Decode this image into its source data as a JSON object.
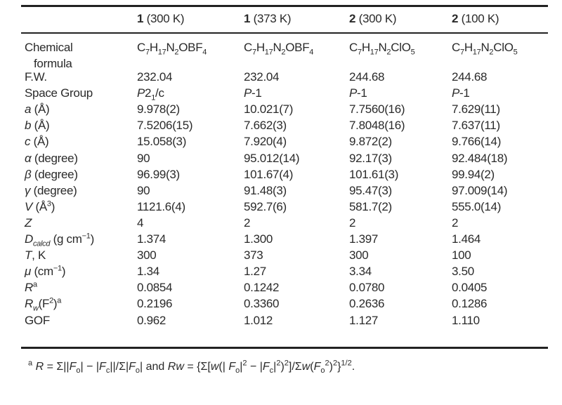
{
  "header": [
    [
      {
        "t": "1",
        "b": 1
      },
      {
        "t": " (300 K)"
      }
    ],
    [
      {
        "t": "1",
        "b": 1
      },
      {
        "t": " (373 K)"
      }
    ],
    [
      {
        "t": "2",
        "b": 1
      },
      {
        "t": " (300 K)"
      }
    ],
    [
      {
        "t": "2",
        "b": 1
      },
      {
        "t": " (100 K)"
      }
    ]
  ],
  "rows": [
    {
      "label": [
        {
          "t": "Chemical"
        }
      ],
      "label2": [
        {
          "t": "formula"
        }
      ],
      "values": [
        [
          {
            "t": "C"
          },
          {
            "t": "7",
            "sub": 1
          },
          {
            "t": "H"
          },
          {
            "t": "17",
            "sub": 1
          },
          {
            "t": "N"
          },
          {
            "t": "2",
            "sub": 1
          },
          {
            "t": "OBF"
          },
          {
            "t": "4",
            "sub": 1
          }
        ],
        [
          {
            "t": "C"
          },
          {
            "t": "7",
            "sub": 1
          },
          {
            "t": "H"
          },
          {
            "t": "17",
            "sub": 1
          },
          {
            "t": "N"
          },
          {
            "t": "2",
            "sub": 1
          },
          {
            "t": "OBF"
          },
          {
            "t": "4",
            "sub": 1
          }
        ],
        [
          {
            "t": "C"
          },
          {
            "t": "7",
            "sub": 1
          },
          {
            "t": "H"
          },
          {
            "t": "17",
            "sub": 1
          },
          {
            "t": "N"
          },
          {
            "t": "2",
            "sub": 1
          },
          {
            "t": "ClO"
          },
          {
            "t": "5",
            "sub": 1
          }
        ],
        [
          {
            "t": "C"
          },
          {
            "t": "7",
            "sub": 1
          },
          {
            "t": "H"
          },
          {
            "t": "17",
            "sub": 1
          },
          {
            "t": "N"
          },
          {
            "t": "2",
            "sub": 1
          },
          {
            "t": "ClO"
          },
          {
            "t": "5",
            "sub": 1
          }
        ]
      ]
    },
    {
      "label": [
        {
          "t": "F.W."
        }
      ],
      "values": [
        "232.04",
        "232.04",
        "244.68",
        "244.68"
      ]
    },
    {
      "label": [
        {
          "t": "Space Group"
        }
      ],
      "values": [
        [
          {
            "t": "P",
            "i": 1
          },
          {
            "t": "2"
          },
          {
            "t": "1",
            "sub": 1
          },
          {
            "t": "/c"
          }
        ],
        [
          {
            "t": "P",
            "i": 1
          },
          {
            "t": "-1"
          }
        ],
        [
          {
            "t": "P",
            "i": 1
          },
          {
            "t": "-1"
          }
        ],
        [
          {
            "t": "P",
            "i": 1
          },
          {
            "t": "-1"
          }
        ]
      ]
    },
    {
      "label": [
        {
          "t": "a",
          "i": 1
        },
        {
          "t": " (Å)"
        }
      ],
      "values": [
        "9.978(2)",
        "10.021(7)",
        "7.7560(16)",
        "7.629(11)"
      ]
    },
    {
      "label": [
        {
          "t": "b",
          "i": 1
        },
        {
          "t": " (Å)"
        }
      ],
      "values": [
        "7.5206(15)",
        "7.662(3)",
        "7.8048(16)",
        "7.637(11)"
      ]
    },
    {
      "label": [
        {
          "t": "c",
          "i": 1
        },
        {
          "t": " (Å)"
        }
      ],
      "values": [
        "15.058(3)",
        "7.920(4)",
        "9.872(2)",
        "9.766(14)"
      ]
    },
    {
      "label": [
        {
          "t": "α",
          "i": 1
        },
        {
          "t": " (degree)"
        }
      ],
      "values": [
        "90",
        "95.012(14)",
        "92.17(3)",
        "92.484(18)"
      ]
    },
    {
      "label": [
        {
          "t": "β",
          "i": 1
        },
        {
          "t": " (degree)"
        }
      ],
      "values": [
        "96.99(3)",
        "101.67(4)",
        "101.61(3)",
        "99.94(2)"
      ]
    },
    {
      "label": [
        {
          "t": "γ",
          "i": 1
        },
        {
          "t": " (degree)"
        }
      ],
      "values": [
        "90",
        "91.48(3)",
        "95.47(3)",
        "97.009(14)"
      ]
    },
    {
      "label": [
        {
          "t": "V",
          "i": 1
        },
        {
          "t": " (Å"
        },
        {
          "t": "3",
          "sup": 1
        },
        {
          "t": ")"
        }
      ],
      "values": [
        "1121.6(4)",
        "592.7(6)",
        "581.7(2)",
        "555.0(14)"
      ]
    },
    {
      "label": [
        {
          "t": "Z",
          "i": 1
        }
      ],
      "values": [
        "4",
        "2",
        "2",
        "2"
      ]
    },
    {
      "label": [
        {
          "t": "D",
          "i": 1
        },
        {
          "t": "calcd",
          "sub": 1,
          "i": 1
        },
        {
          "t": " (g cm"
        },
        {
          "t": "−1",
          "sup": 1
        },
        {
          "t": ")"
        }
      ],
      "values": [
        "1.374",
        "1.300",
        "1.397",
        "1.464"
      ]
    },
    {
      "label": [
        {
          "t": "T",
          "i": 1
        },
        {
          "t": ", K"
        }
      ],
      "values": [
        "300",
        "373",
        "300",
        "100"
      ]
    },
    {
      "label": [
        {
          "t": "μ",
          "i": 1
        },
        {
          "t": " (cm"
        },
        {
          "t": "−1",
          "sup": 1
        },
        {
          "t": ")"
        }
      ],
      "values": [
        "1.34",
        "1.27",
        "3.34",
        "3.50"
      ]
    },
    {
      "label": [
        {
          "t": "R",
          "i": 1
        },
        {
          "t": "a",
          "sup": 1
        }
      ],
      "values": [
        "0.0854",
        "0.1242",
        "0.0780",
        "0.0405"
      ]
    },
    {
      "label": [
        {
          "t": "R",
          "i": 1
        },
        {
          "t": "w",
          "sub": 1,
          "i": 1
        },
        {
          "t": "(F"
        },
        {
          "t": "2",
          "sup": 1
        },
        {
          "t": ")"
        },
        {
          "t": "a",
          "sup": 1
        }
      ],
      "values": [
        "0.2196",
        "0.3360",
        "0.2636",
        "0.1286"
      ]
    },
    {
      "label": [
        {
          "t": "GOF"
        }
      ],
      "values": [
        "0.962",
        "1.012",
        "1.127",
        "1.110"
      ]
    }
  ],
  "footnote": [
    {
      "t": "a",
      "sup": 1
    },
    {
      "t": "  "
    },
    {
      "t": "R",
      "i": 1
    },
    {
      "t": " = Σ||"
    },
    {
      "t": "F",
      "i": 1
    },
    {
      "t": "o",
      "sub": 1
    },
    {
      "t": "| − |"
    },
    {
      "t": "F",
      "i": 1
    },
    {
      "t": "c",
      "sub": 1
    },
    {
      "t": "||/Σ|"
    },
    {
      "t": "F",
      "i": 1
    },
    {
      "t": "o",
      "sub": 1
    },
    {
      "t": "| and "
    },
    {
      "t": "Rw",
      "i": 1
    },
    {
      "t": " = {Σ["
    },
    {
      "t": "w",
      "i": 1
    },
    {
      "t": "(| "
    },
    {
      "t": "F",
      "i": 1
    },
    {
      "t": "o",
      "sub": 1
    },
    {
      "t": "|"
    },
    {
      "t": "2",
      "sup": 1
    },
    {
      "t": " − |"
    },
    {
      "t": "F",
      "i": 1
    },
    {
      "t": "c",
      "sub": 1
    },
    {
      "t": "|"
    },
    {
      "t": "2",
      "sup": 1
    },
    {
      "t": ")"
    },
    {
      "t": "2",
      "sup": 1
    },
    {
      "t": "]/Σ"
    },
    {
      "t": "w",
      "i": 1
    },
    {
      "t": "("
    },
    {
      "t": "F",
      "i": 1
    },
    {
      "t": "o",
      "sub": 1
    },
    {
      "t": "2",
      "sup": 1
    },
    {
      "t": ")"
    },
    {
      "t": "2",
      "sup": 1
    },
    {
      "t": "}"
    },
    {
      "t": "1/2",
      "sup": 1
    },
    {
      "t": "."
    }
  ]
}
